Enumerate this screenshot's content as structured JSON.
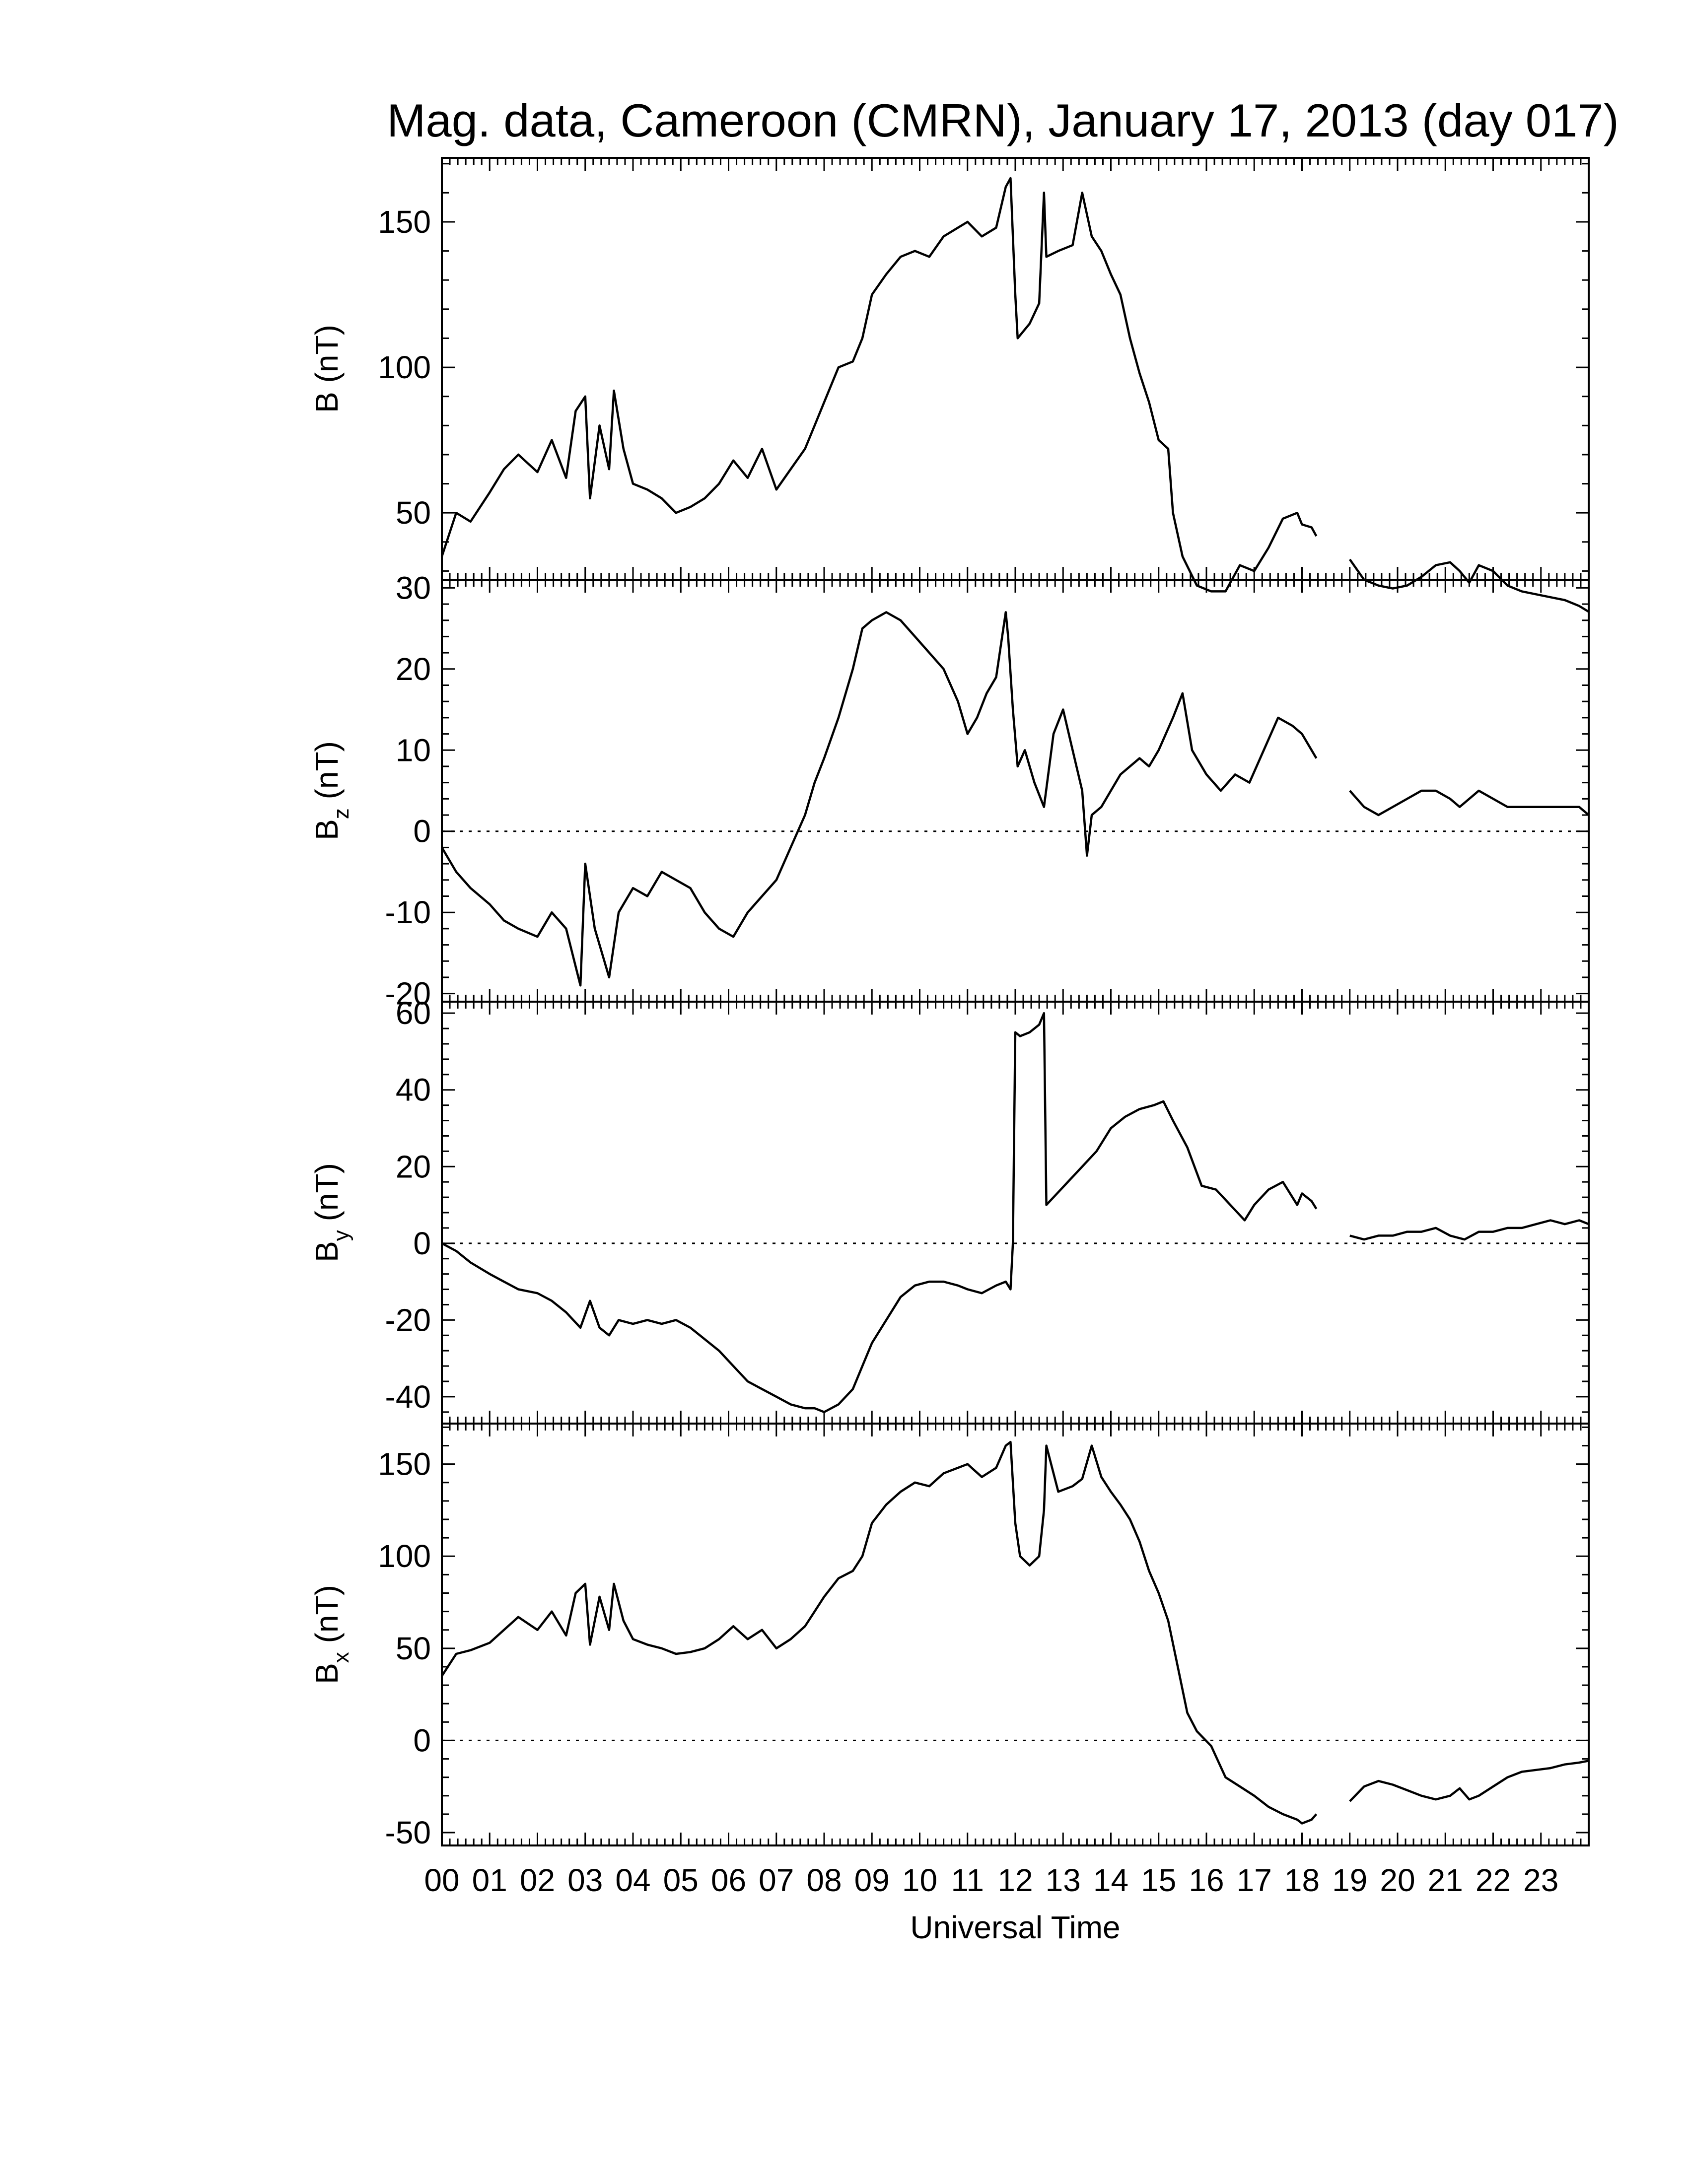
{
  "chart_data": {
    "type": "line",
    "title": "Mag. data, Cameroon (CMRN), January 17, 2013 (day 017)",
    "xlabel": "Universal Time",
    "xlim": [
      0,
      24
    ],
    "x_tick_labels": [
      "00",
      "01",
      "02",
      "03",
      "04",
      "05",
      "06",
      "07",
      "08",
      "09",
      "10",
      "11",
      "12",
      "13",
      "14",
      "15",
      "16",
      "17",
      "18",
      "19",
      "20",
      "21",
      "22",
      "23"
    ],
    "data_gap_hours": [
      18.3,
      19.0
    ],
    "panels": [
      {
        "label": "B (nT)",
        "label_base": "B",
        "label_sub": "",
        "label_unit": "(nT)",
        "ylim": [
          27,
          172
        ],
        "yticks": [
          50,
          100,
          150
        ],
        "zero_line": false,
        "x": [
          0,
          0.3,
          0.6,
          1.0,
          1.3,
          1.6,
          2.0,
          2.3,
          2.6,
          2.8,
          3.0,
          3.1,
          3.3,
          3.5,
          3.6,
          3.8,
          4.0,
          4.3,
          4.6,
          4.9,
          5.2,
          5.5,
          5.8,
          6.1,
          6.4,
          6.7,
          7.0,
          7.3,
          7.6,
          7.8,
          8.0,
          8.3,
          8.6,
          8.8,
          9.0,
          9.3,
          9.6,
          9.9,
          10.2,
          10.5,
          10.8,
          11.0,
          11.3,
          11.6,
          11.8,
          11.9,
          12.0,
          12.05,
          12.15,
          12.3,
          12.5,
          12.6,
          12.65,
          12.9,
          13.2,
          13.4,
          13.6,
          13.8,
          14.0,
          14.2,
          14.4,
          14.6,
          14.8,
          15.0,
          15.2,
          15.3,
          15.5,
          15.8,
          16.1,
          16.4,
          16.7,
          17.0,
          17.3,
          17.6,
          17.9,
          18.0,
          18.2,
          18.3,
          19.0,
          19.3,
          19.6,
          19.9,
          20.2,
          20.5,
          20.8,
          21.1,
          21.3,
          21.5,
          21.7,
          22.0,
          22.3,
          22.6,
          22.9,
          23.2,
          23.5,
          23.8,
          24.0
        ],
        "y": [
          35,
          50,
          47,
          57,
          65,
          70,
          64,
          75,
          62,
          85,
          90,
          55,
          80,
          65,
          92,
          72,
          60,
          58,
          55,
          50,
          52,
          55,
          60,
          68,
          62,
          72,
          58,
          65,
          72,
          80,
          88,
          100,
          102,
          110,
          125,
          132,
          138,
          140,
          138,
          145,
          148,
          150,
          145,
          148,
          162,
          165,
          125,
          110,
          112,
          115,
          122,
          160,
          138,
          140,
          142,
          160,
          145,
          140,
          132,
          125,
          110,
          98,
          88,
          75,
          72,
          50,
          35,
          25,
          23,
          23,
          32,
          30,
          38,
          48,
          50,
          46,
          45,
          42,
          34,
          27,
          25,
          24,
          25,
          28,
          32,
          33,
          30,
          26,
          32,
          30,
          25,
          23,
          22,
          21,
          20,
          18,
          16
        ]
      },
      {
        "label": "Bz (nT)",
        "label_base": "B",
        "label_sub": "z",
        "label_unit": "(nT)",
        "ylim": [
          -21,
          31
        ],
        "yticks": [
          -20,
          -10,
          0,
          10,
          20,
          30
        ],
        "zero_line": true,
        "x": [
          0,
          0.3,
          0.6,
          1.0,
          1.3,
          1.6,
          2.0,
          2.3,
          2.6,
          2.9,
          3.0,
          3.2,
          3.4,
          3.5,
          3.7,
          4.0,
          4.3,
          4.6,
          4.9,
          5.2,
          5.5,
          5.8,
          6.1,
          6.4,
          6.7,
          7.0,
          7.3,
          7.6,
          7.8,
          8.0,
          8.3,
          8.6,
          8.8,
          9.0,
          9.3,
          9.6,
          9.9,
          10.2,
          10.5,
          10.8,
          11.0,
          11.2,
          11.4,
          11.6,
          11.8,
          11.85,
          11.95,
          12.05,
          12.2,
          12.4,
          12.6,
          12.8,
          13.0,
          13.2,
          13.4,
          13.5,
          13.6,
          13.8,
          14.0,
          14.2,
          14.4,
          14.6,
          14.8,
          15.0,
          15.3,
          15.5,
          15.7,
          16.0,
          16.3,
          16.6,
          16.9,
          17.2,
          17.5,
          17.8,
          18.0,
          18.2,
          18.3,
          19.0,
          19.3,
          19.6,
          19.9,
          20.2,
          20.5,
          20.8,
          21.1,
          21.3,
          21.5,
          21.7,
          22.0,
          22.3,
          22.6,
          22.9,
          23.2,
          23.5,
          23.8,
          24.0
        ],
        "y": [
          -2,
          -5,
          -7,
          -9,
          -11,
          -12,
          -13,
          -10,
          -12,
          -19,
          -4,
          -12,
          -16,
          -18,
          -10,
          -7,
          -8,
          -5,
          -6,
          -7,
          -10,
          -12,
          -13,
          -10,
          -8,
          -6,
          -2,
          2,
          6,
          9,
          14,
          20,
          25,
          26,
          27,
          26,
          24,
          22,
          20,
          16,
          12,
          14,
          17,
          19,
          27,
          24,
          15,
          8,
          10,
          6,
          3,
          12,
          15,
          10,
          5,
          -3,
          2,
          3,
          5,
          7,
          8,
          9,
          8,
          10,
          14,
          17,
          10,
          7,
          5,
          7,
          6,
          10,
          14,
          13,
          12,
          10,
          9,
          5,
          3,
          2,
          3,
          4,
          5,
          5,
          4,
          3,
          4,
          5,
          4,
          3,
          3,
          3,
          3,
          3,
          3,
          2
        ]
      },
      {
        "label": "By (nT)",
        "label_base": "B",
        "label_sub": "y",
        "label_unit": "(nT)",
        "ylim": [
          -47,
          63
        ],
        "yticks": [
          -40,
          -20,
          0,
          20,
          40,
          60
        ],
        "zero_line": true,
        "x": [
          0,
          0.3,
          0.6,
          1.0,
          1.3,
          1.6,
          2.0,
          2.3,
          2.6,
          2.9,
          3.1,
          3.3,
          3.5,
          3.7,
          4.0,
          4.3,
          4.6,
          4.9,
          5.2,
          5.5,
          5.8,
          6.1,
          6.4,
          6.7,
          7.0,
          7.3,
          7.6,
          7.8,
          8.0,
          8.3,
          8.6,
          8.8,
          9.0,
          9.3,
          9.6,
          9.9,
          10.2,
          10.5,
          10.8,
          11.0,
          11.3,
          11.6,
          11.8,
          11.9,
          11.95,
          12.0,
          12.1,
          12.3,
          12.5,
          12.6,
          12.65,
          12.8,
          13.1,
          13.4,
          13.7,
          14.0,
          14.3,
          14.6,
          14.9,
          15.1,
          15.3,
          15.6,
          15.9,
          16.2,
          16.5,
          16.8,
          17.0,
          17.3,
          17.6,
          17.9,
          18.0,
          18.2,
          18.3,
          19.0,
          19.3,
          19.6,
          19.9,
          20.2,
          20.5,
          20.8,
          21.1,
          21.4,
          21.7,
          22.0,
          22.3,
          22.6,
          22.9,
          23.2,
          23.5,
          23.8,
          24.0
        ],
        "y": [
          0,
          -2,
          -5,
          -8,
          -10,
          -12,
          -13,
          -15,
          -18,
          -22,
          -15,
          -22,
          -24,
          -20,
          -21,
          -20,
          -21,
          -20,
          -22,
          -25,
          -28,
          -32,
          -36,
          -38,
          -40,
          -42,
          -43,
          -43,
          -44,
          -42,
          -38,
          -32,
          -26,
          -20,
          -14,
          -11,
          -10,
          -10,
          -11,
          -12,
          -13,
          -11,
          -10,
          -12,
          0,
          55,
          54,
          55,
          57,
          60,
          10,
          12,
          16,
          20,
          24,
          30,
          33,
          35,
          36,
          37,
          32,
          25,
          15,
          14,
          10,
          6,
          10,
          14,
          16,
          10,
          13,
          11,
          9,
          2,
          1,
          2,
          2,
          3,
          3,
          4,
          2,
          1,
          3,
          3,
          4,
          4,
          5,
          6,
          5,
          6,
          5
        ]
      },
      {
        "label": "Bx (nT)",
        "label_base": "B",
        "label_sub": "x",
        "label_unit": "(nT)",
        "ylim": [
          -57,
          172
        ],
        "yticks": [
          -50,
          0,
          50,
          100,
          150
        ],
        "zero_line": true,
        "x": [
          0,
          0.3,
          0.6,
          1.0,
          1.3,
          1.6,
          2.0,
          2.3,
          2.6,
          2.8,
          3.0,
          3.1,
          3.3,
          3.5,
          3.6,
          3.8,
          4.0,
          4.3,
          4.6,
          4.9,
          5.2,
          5.5,
          5.8,
          6.1,
          6.4,
          6.7,
          7.0,
          7.3,
          7.6,
          7.8,
          8.0,
          8.3,
          8.6,
          8.8,
          9.0,
          9.3,
          9.6,
          9.9,
          10.2,
          10.5,
          10.8,
          11.0,
          11.3,
          11.6,
          11.8,
          11.9,
          12.0,
          12.1,
          12.3,
          12.5,
          12.6,
          12.65,
          12.9,
          13.2,
          13.4,
          13.6,
          13.8,
          14.0,
          14.2,
          14.4,
          14.6,
          14.8,
          15.0,
          15.2,
          15.4,
          15.6,
          15.8,
          16.1,
          16.4,
          16.7,
          17.0,
          17.3,
          17.6,
          17.9,
          18.0,
          18.2,
          18.3,
          19.0,
          19.3,
          19.6,
          19.9,
          20.2,
          20.5,
          20.8,
          21.1,
          21.3,
          21.5,
          21.7,
          22.0,
          22.3,
          22.6,
          22.9,
          23.2,
          23.5,
          23.8,
          24.0
        ],
        "y": [
          35,
          47,
          49,
          53,
          60,
          67,
          60,
          70,
          57,
          80,
          85,
          52,
          78,
          60,
          85,
          65,
          55,
          52,
          50,
          47,
          48,
          50,
          55,
          62,
          55,
          60,
          50,
          55,
          62,
          70,
          78,
          88,
          92,
          100,
          118,
          128,
          135,
          140,
          138,
          145,
          148,
          150,
          143,
          148,
          160,
          162,
          118,
          100,
          95,
          100,
          125,
          160,
          135,
          138,
          142,
          160,
          143,
          135,
          128,
          120,
          108,
          92,
          80,
          65,
          40,
          15,
          5,
          -3,
          -20,
          -25,
          -30,
          -36,
          -40,
          -43,
          -45,
          -43,
          -40,
          -33,
          -25,
          -22,
          -24,
          -27,
          -30,
          -32,
          -30,
          -26,
          -32,
          -30,
          -25,
          -20,
          -17,
          -16,
          -15,
          -13,
          -12,
          -11
        ]
      }
    ]
  }
}
